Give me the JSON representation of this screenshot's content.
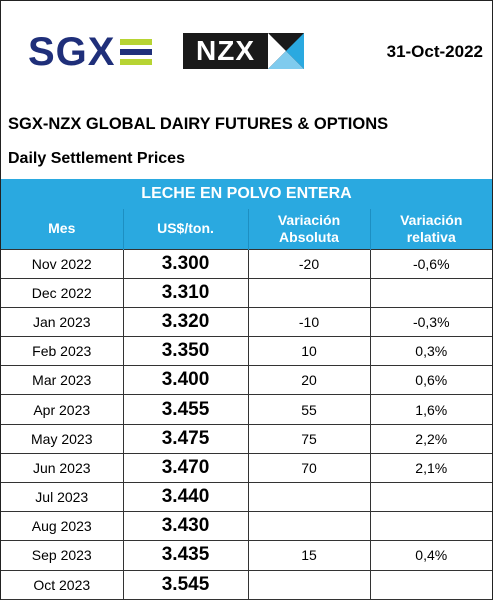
{
  "header": {
    "sgx_logo_text": "SGX",
    "nzx_logo_text": "NZX",
    "date": "31-Oct-2022",
    "title": "SGX-NZX GLOBAL DAIRY FUTURES & OPTIONS",
    "subtitle": "Daily Settlement Prices"
  },
  "colors": {
    "band": "#2aa9e0",
    "sgx_blue": "#1f2f7a",
    "sgx_green": "#b7d433",
    "nzx_dark": "#1a1a1a",
    "nzx_accent": "#2aa9e0"
  },
  "table": {
    "product": "LECHE EN POLVO ENTERA",
    "columns": {
      "month": "Mes",
      "price": "US$/ton.",
      "abs_line1": "Variación",
      "abs_line2": "Absoluta",
      "rel_line1": "Variación",
      "rel_line2": "relativa"
    },
    "rows": [
      {
        "month": "Nov 2022",
        "price": "3.300",
        "abs": "-20",
        "rel": "-0,6%"
      },
      {
        "month": "Dec 2022",
        "price": "3.310",
        "abs": "",
        "rel": ""
      },
      {
        "month": "Jan 2023",
        "price": "3.320",
        "abs": "-10",
        "rel": "-0,3%"
      },
      {
        "month": "Feb 2023",
        "price": "3.350",
        "abs": "10",
        "rel": "0,3%"
      },
      {
        "month": "Mar 2023",
        "price": "3.400",
        "abs": "20",
        "rel": "0,6%"
      },
      {
        "month": "Apr 2023",
        "price": "3.455",
        "abs": "55",
        "rel": "1,6%"
      },
      {
        "month": "May 2023",
        "price": "3.475",
        "abs": "75",
        "rel": "2,2%"
      },
      {
        "month": "Jun 2023",
        "price": "3.470",
        "abs": "70",
        "rel": "2,1%"
      },
      {
        "month": "Jul 2023",
        "price": "3.440",
        "abs": "",
        "rel": ""
      },
      {
        "month": "Aug 2023",
        "price": "3.430",
        "abs": "",
        "rel": ""
      },
      {
        "month": "Sep 2023",
        "price": "3.435",
        "abs": "15",
        "rel": "0,4%"
      },
      {
        "month": "Oct 2023",
        "price": "3.545",
        "abs": "",
        "rel": ""
      }
    ]
  }
}
